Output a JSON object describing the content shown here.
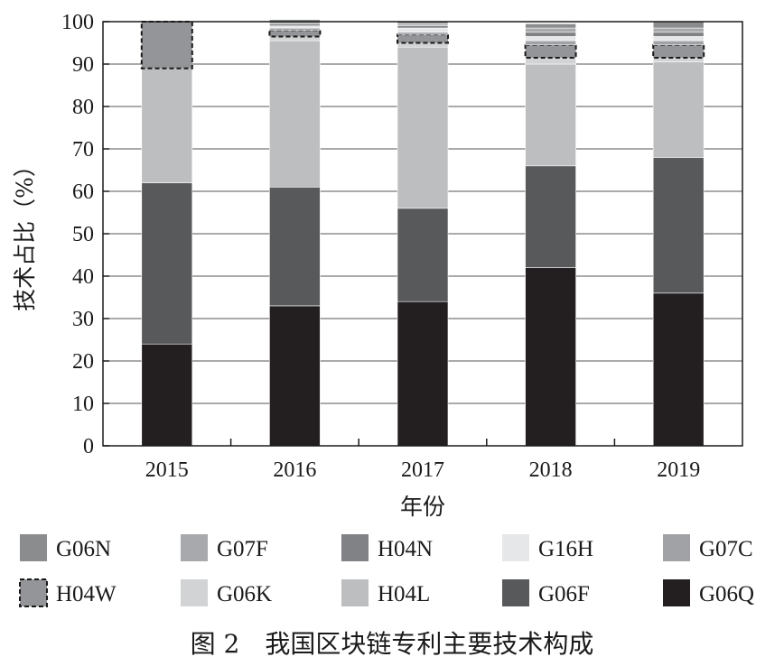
{
  "caption": "图 2　我国区块链专利主要技术构成",
  "chart_data": {
    "type": "bar",
    "stacked": true,
    "xlabel": "年份",
    "ylabel": "技术占比（%）",
    "ylim": [
      0,
      100
    ],
    "yticks": [
      0,
      10,
      20,
      30,
      40,
      50,
      60,
      70,
      80,
      90,
      100
    ],
    "categories": [
      "2015",
      "2016",
      "2017",
      "2018",
      "2019"
    ],
    "grid": true,
    "legend_position": "bottom",
    "legend_order": [
      "G06N",
      "G07F",
      "H04N",
      "G16H",
      "G07C",
      "H04W",
      "G06K",
      "H04L",
      "G06F",
      "G06Q"
    ],
    "series": [
      {
        "name": "G06Q",
        "color": "#231f20",
        "dashed": false,
        "values": [
          24,
          33,
          34,
          42,
          36
        ]
      },
      {
        "name": "G06F",
        "color": "#58595b",
        "dashed": false,
        "values": [
          38,
          28,
          22,
          24,
          32
        ]
      },
      {
        "name": "H04L",
        "color": "#bcbec0",
        "dashed": false,
        "values": [
          27,
          34.5,
          38,
          24,
          22.5
        ]
      },
      {
        "name": "G06K",
        "color": "#d1d3d4",
        "dashed": false,
        "values": [
          0,
          1,
          1,
          1.5,
          1
        ]
      },
      {
        "name": "H04W",
        "color": "#939598",
        "dashed": true,
        "values": [
          11,
          1.5,
          2,
          3,
          3
        ]
      },
      {
        "name": "G07C",
        "color": "#a0a2a5",
        "dashed": false,
        "values": [
          0,
          0.5,
          0.5,
          1,
          1
        ]
      },
      {
        "name": "G16H",
        "color": "#e6e7e8",
        "dashed": false,
        "values": [
          0,
          0.5,
          1,
          1,
          1
        ]
      },
      {
        "name": "H04N",
        "color": "#808285",
        "dashed": false,
        "values": [
          0,
          0.5,
          0.5,
          1,
          1
        ]
      },
      {
        "name": "G07F",
        "color": "#a7a9ac",
        "dashed": false,
        "values": [
          0,
          0.5,
          0.5,
          1,
          1
        ]
      },
      {
        "name": "G06N",
        "color": "#8a8c8e",
        "dashed": false,
        "values": [
          0,
          0.5,
          0.5,
          1,
          1.5
        ]
      }
    ]
  }
}
